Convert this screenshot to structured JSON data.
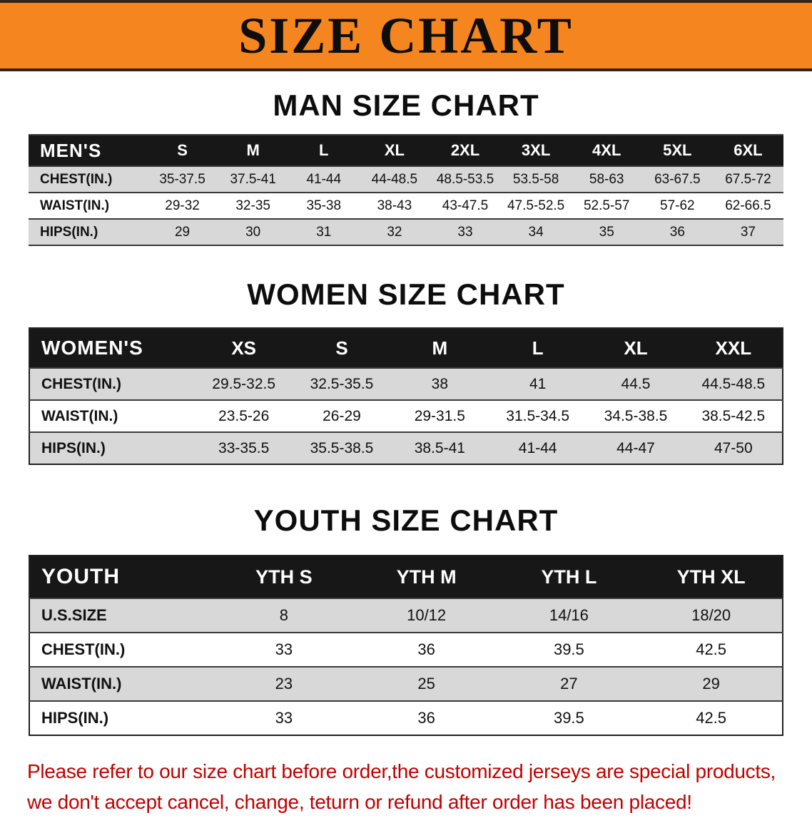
{
  "colors": {
    "banner-bg": "#F5851F",
    "table-header-bg": "#171717",
    "row-stripe": "#d8d8d8",
    "note-red": "#C00000"
  },
  "banner": {
    "title": "SIZE CHART"
  },
  "sections": [
    {
      "title": "MAN SIZE CHART",
      "table": {
        "header": [
          "MEN'S",
          "S",
          "M",
          "L",
          "XL",
          "2XL",
          "3XL",
          "4XL",
          "5XL",
          "6XL"
        ],
        "rows": [
          [
            "CHEST(IN.)",
            "35-37.5",
            "37.5-41",
            "41-44",
            "44-48.5",
            "48.5-53.5",
            "53.5-58",
            "58-63",
            "63-67.5",
            "67.5-72"
          ],
          [
            "WAIST(IN.)",
            "29-32",
            "32-35",
            "35-38",
            "38-43",
            "43-47.5",
            "47.5-52.5",
            "52.5-57",
            "57-62",
            "62-66.5"
          ],
          [
            "HIPS(IN.)",
            "29",
            "30",
            "31",
            "32",
            "33",
            "34",
            "35",
            "36",
            "37"
          ]
        ]
      }
    },
    {
      "title": "WOMEN SIZE CHART",
      "table": {
        "header": [
          "WOMEN'S",
          "XS",
          "S",
          "M",
          "L",
          "XL",
          "XXL"
        ],
        "rows": [
          [
            "CHEST(IN.)",
            "29.5-32.5",
            "32.5-35.5",
            "38",
            "41",
            "44.5",
            "44.5-48.5"
          ],
          [
            "WAIST(IN.)",
            "23.5-26",
            "26-29",
            "29-31.5",
            "31.5-34.5",
            "34.5-38.5",
            "38.5-42.5"
          ],
          [
            "HIPS(IN.)",
            "33-35.5",
            "35.5-38.5",
            "38.5-41",
            "41-44",
            "44-47",
            "47-50"
          ]
        ]
      }
    },
    {
      "title": "YOUTH SIZE CHART",
      "table": {
        "header": [
          "YOUTH",
          "YTH S",
          "YTH M",
          "YTH L",
          "YTH XL"
        ],
        "rows": [
          [
            "U.S.SIZE",
            "8",
            "10/12",
            "14/16",
            "18/20"
          ],
          [
            "CHEST(IN.)",
            "33",
            "36",
            "39.5",
            "42.5"
          ],
          [
            "WAIST(IN.)",
            "23",
            "25",
            "27",
            "29"
          ],
          [
            "HIPS(IN.)",
            "33",
            "36",
            "39.5",
            "42.5"
          ]
        ]
      }
    }
  ],
  "footer": {
    "line1": "Please refer to our size chart before order,the customized jerseys are special products,",
    "line2": "we don't accept cancel, change, teturn or refund after order has been placed!"
  }
}
